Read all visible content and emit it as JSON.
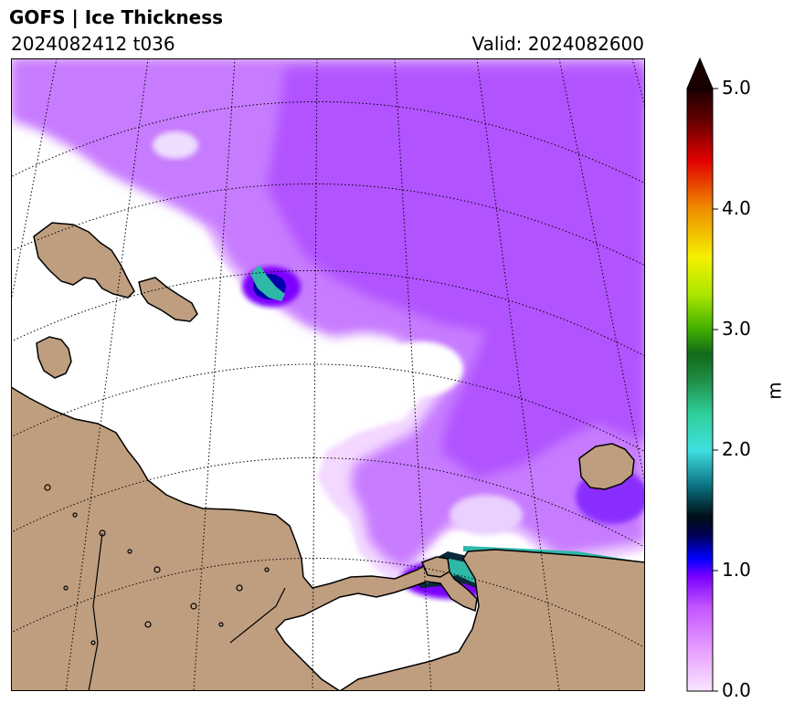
{
  "header": {
    "title": "GOFS  |  Ice Thickness",
    "run_label": "2024082412 t036",
    "valid_label": "Valid: 2024082600"
  },
  "map": {
    "land_color": "#bf9e7f",
    "ocean_color": "#ffffff",
    "coast_color": "#000000",
    "gridline_style": "dotted"
  },
  "colorbar": {
    "unit": "m",
    "min": 0.0,
    "max": 5.0,
    "extend": "max",
    "ticks": [
      "0.0",
      "1.0",
      "2.0",
      "3.0",
      "4.0",
      "5.0"
    ],
    "tick_values": [
      0,
      1,
      2,
      3,
      4,
      5
    ],
    "stops": [
      {
        "value": 0.0,
        "color": "#f8e6ff"
      },
      {
        "value": 0.35,
        "color": "#e79cff"
      },
      {
        "value": 0.7,
        "color": "#c254ff"
      },
      {
        "value": 0.95,
        "color": "#7b00ff"
      },
      {
        "value": 1.1,
        "color": "#0000ff"
      },
      {
        "value": 1.3,
        "color": "#000050"
      },
      {
        "value": 1.45,
        "color": "#001015"
      },
      {
        "value": 1.7,
        "color": "#0a7080"
      },
      {
        "value": 2.0,
        "color": "#40e0e0"
      },
      {
        "value": 2.3,
        "color": "#2fcf9a"
      },
      {
        "value": 2.6,
        "color": "#1e8a40"
      },
      {
        "value": 2.8,
        "color": "#136a1a"
      },
      {
        "value": 3.0,
        "color": "#3fae00"
      },
      {
        "value": 3.3,
        "color": "#aee800"
      },
      {
        "value": 3.6,
        "color": "#f4f000"
      },
      {
        "value": 4.0,
        "color": "#f08e00"
      },
      {
        "value": 4.4,
        "color": "#e20000"
      },
      {
        "value": 4.75,
        "color": "#600000"
      },
      {
        "value": 5.0,
        "color": "#1a0000"
      }
    ]
  }
}
